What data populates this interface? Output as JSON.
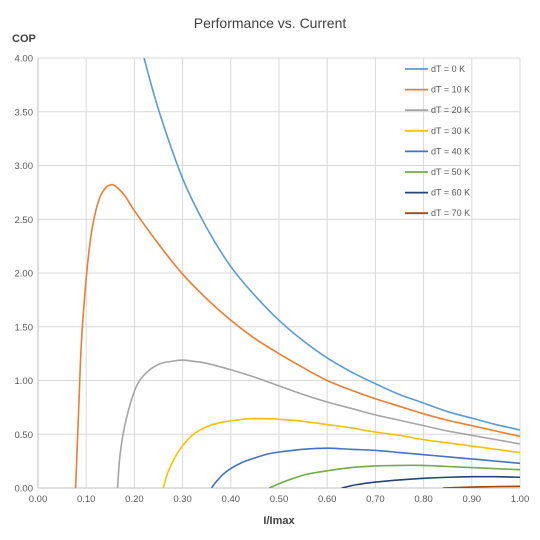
{
  "chart_data": {
    "type": "line",
    "title": "Performance vs. Current",
    "xlabel": "I/Imax",
    "ylabel": "COP",
    "xlim": [
      0.0,
      1.0
    ],
    "ylim": [
      0.0,
      4.0
    ],
    "x_ticks": [
      "0.00",
      "0.10",
      "0.20",
      "0.30",
      "0.40",
      "0.50",
      "0.60",
      "0.70",
      "0.80",
      "0.90",
      "1.00"
    ],
    "y_ticks": [
      "0.00",
      "0.50",
      "1.00",
      "1.50",
      "2.00",
      "2.50",
      "3.00",
      "3.50",
      "4.00"
    ],
    "grid": true,
    "legend_position": "top-right",
    "series": [
      {
        "name": "dT = 0 K",
        "color": "#5B9BD5",
        "x": [
          0.22,
          0.25,
          0.3,
          0.35,
          0.4,
          0.45,
          0.5,
          0.55,
          0.6,
          0.65,
          0.7,
          0.75,
          0.8,
          0.85,
          0.9,
          0.95,
          1.0
        ],
        "y": [
          4.0,
          3.52,
          2.88,
          2.42,
          2.06,
          1.79,
          1.56,
          1.37,
          1.21,
          1.08,
          0.97,
          0.87,
          0.79,
          0.71,
          0.65,
          0.59,
          0.54
        ]
      },
      {
        "name": "dT = 10 K",
        "color": "#ED7D31",
        "x": [
          0.078,
          0.085,
          0.09,
          0.1,
          0.11,
          0.12,
          0.13,
          0.14,
          0.15,
          0.16,
          0.18,
          0.2,
          0.25,
          0.3,
          0.35,
          0.4,
          0.45,
          0.5,
          0.55,
          0.6,
          0.65,
          0.7,
          0.75,
          0.8,
          0.85,
          0.9,
          0.95,
          1.0
        ],
        "y": [
          0.0,
          0.8,
          1.35,
          1.95,
          2.35,
          2.58,
          2.72,
          2.79,
          2.82,
          2.81,
          2.72,
          2.58,
          2.27,
          1.99,
          1.76,
          1.56,
          1.39,
          1.25,
          1.12,
          1.0,
          0.91,
          0.83,
          0.76,
          0.69,
          0.63,
          0.58,
          0.53,
          0.48
        ]
      },
      {
        "name": "dT = 20 K",
        "color": "#A5A5A5",
        "x": [
          0.165,
          0.17,
          0.18,
          0.2,
          0.22,
          0.25,
          0.28,
          0.3,
          0.32,
          0.35,
          0.4,
          0.45,
          0.5,
          0.55,
          0.6,
          0.65,
          0.7,
          0.75,
          0.8,
          0.85,
          0.9,
          0.95,
          1.0
        ],
        "y": [
          0.0,
          0.3,
          0.58,
          0.9,
          1.05,
          1.15,
          1.18,
          1.19,
          1.18,
          1.16,
          1.1,
          1.03,
          0.95,
          0.87,
          0.8,
          0.74,
          0.68,
          0.63,
          0.58,
          0.53,
          0.49,
          0.45,
          0.41
        ]
      },
      {
        "name": "dT = 30 K",
        "color": "#FFC000",
        "x": [
          0.26,
          0.27,
          0.29,
          0.32,
          0.35,
          0.38,
          0.41,
          0.44,
          0.47,
          0.5,
          0.55,
          0.6,
          0.65,
          0.7,
          0.75,
          0.8,
          0.85,
          0.9,
          0.95,
          1.0
        ],
        "y": [
          0.0,
          0.15,
          0.33,
          0.49,
          0.57,
          0.61,
          0.63,
          0.645,
          0.645,
          0.64,
          0.62,
          0.59,
          0.56,
          0.52,
          0.49,
          0.45,
          0.42,
          0.39,
          0.36,
          0.33
        ]
      },
      {
        "name": "dT = 40 K",
        "color": "#4472C4",
        "x": [
          0.36,
          0.37,
          0.39,
          0.42,
          0.45,
          0.48,
          0.51,
          0.55,
          0.6,
          0.65,
          0.7,
          0.75,
          0.8,
          0.85,
          0.9,
          0.95,
          1.0
        ],
        "y": [
          0.0,
          0.06,
          0.15,
          0.23,
          0.28,
          0.32,
          0.34,
          0.36,
          0.37,
          0.36,
          0.35,
          0.33,
          0.31,
          0.29,
          0.27,
          0.25,
          0.23
        ]
      },
      {
        "name": "dT = 50 K",
        "color": "#70AD47",
        "x": [
          0.48,
          0.5,
          0.53,
          0.56,
          0.6,
          0.65,
          0.7,
          0.75,
          0.8,
          0.85,
          0.9,
          0.95,
          1.0
        ],
        "y": [
          0.0,
          0.04,
          0.09,
          0.13,
          0.16,
          0.19,
          0.205,
          0.21,
          0.21,
          0.2,
          0.19,
          0.18,
          0.17
        ]
      },
      {
        "name": "dT = 60 K",
        "color": "#264478",
        "x": [
          0.63,
          0.66,
          0.7,
          0.75,
          0.8,
          0.85,
          0.9,
          0.95,
          1.0
        ],
        "y": [
          0.0,
          0.03,
          0.055,
          0.075,
          0.09,
          0.1,
          0.105,
          0.105,
          0.1
        ]
      },
      {
        "name": "dT = 70 K",
        "color": "#9E480E",
        "x": [
          0.84,
          0.88,
          0.92,
          0.96,
          1.0
        ],
        "y": [
          0.0,
          0.006,
          0.011,
          0.014,
          0.016
        ]
      }
    ]
  }
}
